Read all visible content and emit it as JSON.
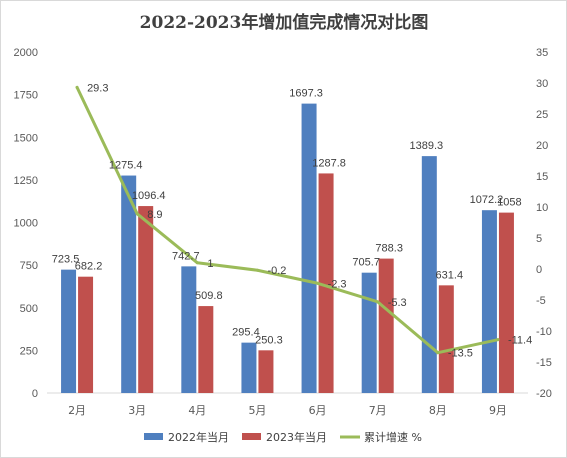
{
  "chart_data": {
    "type": "bar",
    "title": "2022-2023年增加值完成情况对比图",
    "categories": [
      "2月",
      "3月",
      "4月",
      "5月",
      "6月",
      "7月",
      "8月",
      "9月"
    ],
    "series": [
      {
        "name": "2022年当月",
        "type": "bar",
        "axis": "left",
        "color": "#4f7fbf",
        "values": [
          723.5,
          1275.4,
          742.7,
          295.4,
          1697.3,
          705.7,
          1389.3,
          1072.2
        ]
      },
      {
        "name": "2023年当月",
        "type": "bar",
        "axis": "left",
        "color": "#c0504d",
        "values": [
          682.2,
          1096.4,
          509.8,
          250.3,
          1287.8,
          788.3,
          631.4,
          1058
        ]
      },
      {
        "name": "累计增速 %",
        "type": "line",
        "axis": "right",
        "color": "#9bbb59",
        "values": [
          29.3,
          8.9,
          1,
          -0.2,
          -2.3,
          -5.3,
          -13.5,
          -11.4
        ]
      }
    ],
    "y_left": {
      "min": 0,
      "max": 2000,
      "step": 250,
      "ticks": [
        "0",
        "250",
        "500",
        "750",
        "1000",
        "1250",
        "1500",
        "1750",
        "2000"
      ]
    },
    "y_right": {
      "min": -20,
      "max": 35,
      "step": 5,
      "ticks": [
        "-20",
        "-15",
        "-10",
        "-5",
        "0",
        "5",
        "10",
        "15",
        "20",
        "25",
        "30",
        "35"
      ]
    },
    "grid": false,
    "legend_position": "bottom"
  }
}
